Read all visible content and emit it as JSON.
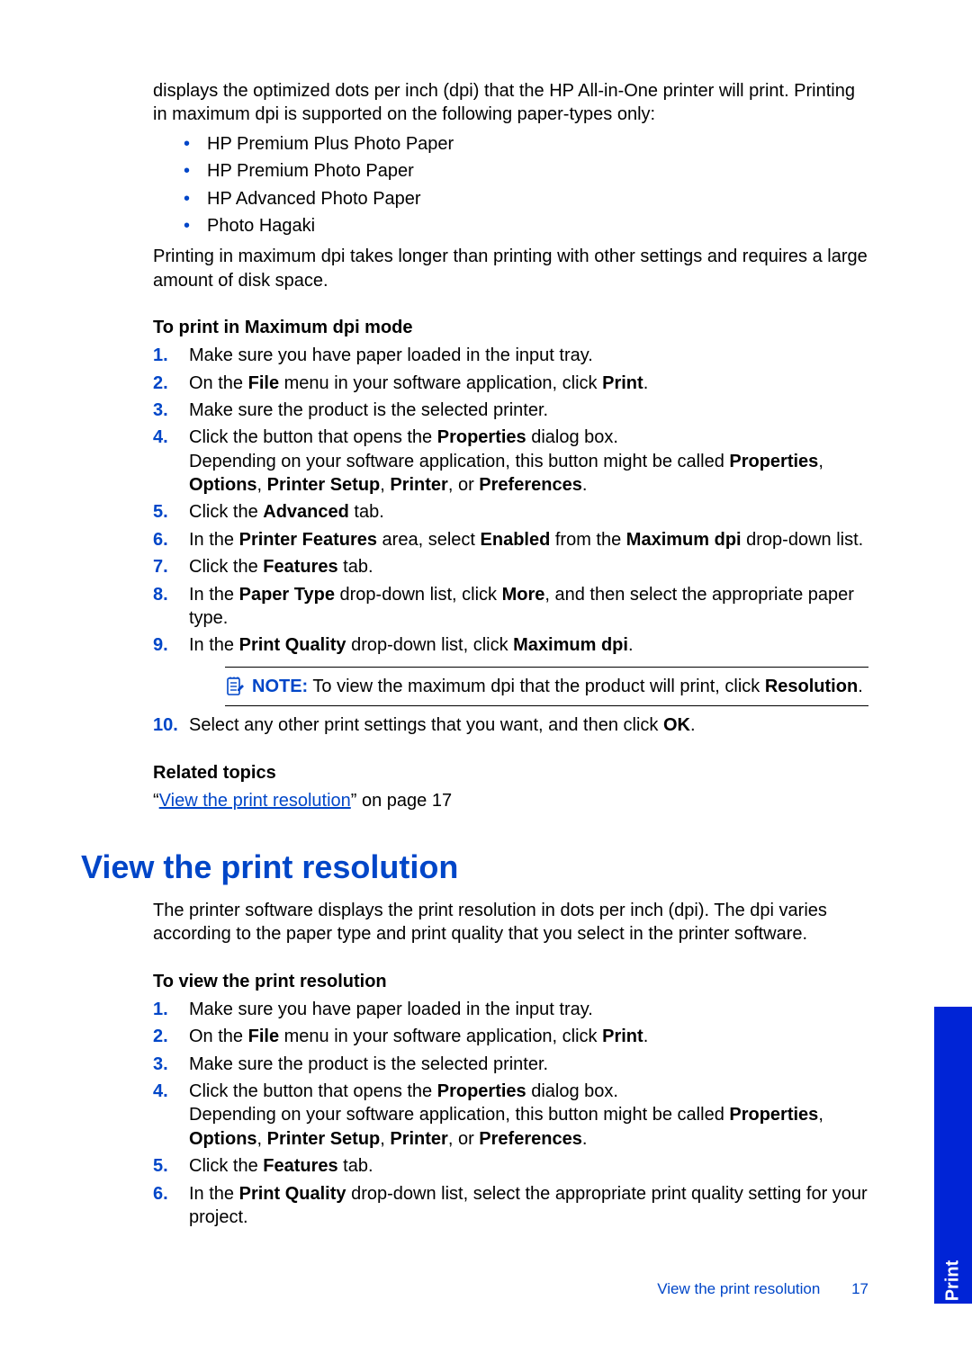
{
  "colors": {
    "accent": "#0046c8",
    "tab_bg": "#0024d6",
    "text": "#000000",
    "bg": "#ffffff",
    "rule": "#000000"
  },
  "typography": {
    "body_pt": 20,
    "heading_pt": 36,
    "footer_pt": 17,
    "tab_pt": 20
  },
  "intro": {
    "p1": "displays the optimized dots per inch (dpi) that the HP All-in-One printer will print. Printing in maximum dpi is supported on the following paper-types only:",
    "bullets": [
      "HP Premium Plus Photo Paper",
      "HP Premium Photo Paper",
      "HP Advanced Photo Paper",
      "Photo Hagaki"
    ],
    "p2": "Printing in maximum dpi takes longer than printing with other settings and requires a large amount of disk space."
  },
  "procedure1": {
    "heading": "To print in Maximum dpi mode",
    "steps": [
      {
        "n": "1.",
        "html": "Make sure you have paper loaded in the input tray."
      },
      {
        "n": "2.",
        "html": "On the <b>File</b> menu in your software application, click <b>Print</b>."
      },
      {
        "n": "3.",
        "html": "Make sure the product is the selected printer."
      },
      {
        "n": "4.",
        "html": "Click the button that opens the <b>Properties</b> dialog box.<br>Depending on your software application, this button might be called <b>Properties</b>, <b>Options</b>, <b>Printer Setup</b>, <b>Printer</b>, or <b>Preferences</b>."
      },
      {
        "n": "5.",
        "html": "Click the <b>Advanced</b> tab."
      },
      {
        "n": "6.",
        "html": "In the <b>Printer Features</b> area, select <b>Enabled</b> from the <b>Maximum dpi</b> drop-down list."
      },
      {
        "n": "7.",
        "html": "Click the <b>Features</b> tab."
      },
      {
        "n": "8.",
        "html": "In the <b>Paper Type</b> drop-down list, click <b>More</b>, and then select the appropriate paper type."
      },
      {
        "n": "9.",
        "html": "In the <b>Print Quality</b> drop-down list, click <b>Maximum dpi</b>."
      }
    ],
    "note": {
      "label": "NOTE:",
      "html": "To view the maximum dpi that the product will print, click <b>Resolution</b>."
    },
    "step10": {
      "n": "10.",
      "html": "Select any other print settings that you want, and then click <b>OK</b>."
    }
  },
  "related": {
    "heading": "Related topics",
    "quote_open": "“",
    "link_text": "View the print resolution",
    "quote_close": "” on page 17"
  },
  "section2": {
    "heading": "View the print resolution",
    "intro": "The printer software displays the print resolution in dots per inch (dpi). The dpi varies according to the paper type and print quality that you select in the printer software.",
    "proc_heading": "To view the print resolution",
    "steps": [
      {
        "n": "1.",
        "html": "Make sure you have paper loaded in the input tray."
      },
      {
        "n": "2.",
        "html": "On the <b>File</b> menu in your software application, click <b>Print</b>."
      },
      {
        "n": "3.",
        "html": "Make sure the product is the selected printer."
      },
      {
        "n": "4.",
        "html": "Click the button that opens the <b>Properties</b> dialog box.<br>Depending on your software application, this button might be called <b>Properties</b>, <b>Options</b>, <b>Printer Setup</b>, <b>Printer</b>, or <b>Preferences</b>."
      },
      {
        "n": "5.",
        "html": "Click the <b>Features</b> tab."
      },
      {
        "n": "6.",
        "html": "In the <b>Print Quality</b> drop-down list, select the appropriate print quality setting for your project."
      }
    ]
  },
  "footer": {
    "title": "View the print resolution",
    "page": "17"
  },
  "tab": {
    "label": "Print"
  }
}
